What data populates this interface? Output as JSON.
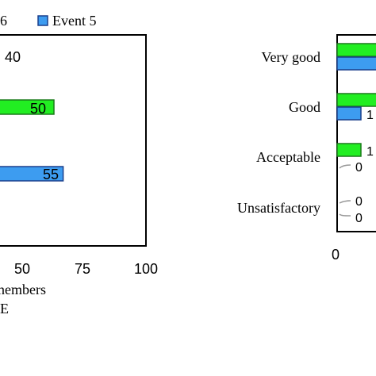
{
  "chart_data": [
    {
      "type": "bar",
      "orientation": "horizontal",
      "title": "",
      "legend": {
        "placement": "top",
        "entries": [
          {
            "label": "6",
            "color": "#22ee22"
          },
          {
            "label": "Event 5",
            "color": "#3d9cf0"
          }
        ]
      },
      "xlim": [
        0,
        100
      ],
      "x_ticks": [
        "50",
        "75",
        "100"
      ],
      "xlabel_lines": [
        "nembers",
        "E"
      ],
      "data_labels": [
        "40",
        "50",
        "55"
      ],
      "series": [
        {
          "name": "6",
          "color": "#22ee22",
          "values": [
            40,
            50,
            null
          ]
        },
        {
          "name": "Event 5",
          "color": "#3d9cf0",
          "values": [
            null,
            null,
            55
          ]
        }
      ]
    },
    {
      "type": "bar",
      "orientation": "horizontal",
      "title": "",
      "categories": [
        "Very good",
        "Good",
        "Acceptable",
        "Unsatisfactory"
      ],
      "x_ticks": [
        "0"
      ],
      "value_labels": [
        "0",
        "0",
        "0"
      ],
      "series": [
        {
          "color": "#22ee22",
          "values": [
            null,
            null,
            null,
            0
          ]
        },
        {
          "color": "#3d9cf0",
          "values": [
            null,
            null,
            0,
            0
          ]
        }
      ]
    }
  ]
}
